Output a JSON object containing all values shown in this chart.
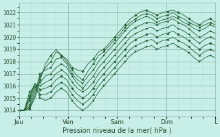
{
  "title": "",
  "xlabel": "Pression niveau de la mer( hPa )",
  "ylabel": "",
  "ylim": [
    1013.5,
    1022.8
  ],
  "yticks": [
    1014,
    1015,
    1016,
    1017,
    1018,
    1019,
    1020,
    1021,
    1022
  ],
  "background_color": "#c8eee8",
  "plot_bg_color": "#c8eee8",
  "grid_major_color": "#88bbaa",
  "grid_minor_color": "#aaddcc",
  "line_color": "#1a5e2a",
  "marker_color": "#1a5e2a",
  "day_labels": [
    "Jeu",
    "Ven",
    "Sam",
    "Dim",
    "L"
  ],
  "day_positions": [
    0,
    24,
    48,
    72,
    96
  ],
  "xlim": [
    0,
    96
  ],
  "series": [
    [
      1014.0,
      1014.0,
      1014.1,
      1015.0,
      1016.5,
      1017.8,
      1018.5,
      1019.0,
      1018.5,
      1018.2,
      1017.5,
      1017.3,
      1017.2,
      1017.8,
      1018.2,
      1018.8,
      1019.0,
      1019.5,
      1020.0,
      1020.5,
      1021.0,
      1021.5,
      1021.8,
      1022.1,
      1022.2,
      1022.0,
      1021.8,
      1022.0,
      1022.1,
      1022.2,
      1022.0,
      1021.8,
      1021.5,
      1021.2,
      1021.0,
      1021.3,
      1021.5,
      1021.2
    ],
    [
      1014.0,
      1014.0,
      1014.2,
      1015.2,
      1016.8,
      1017.5,
      1018.0,
      1018.8,
      1018.5,
      1018.0,
      1017.3,
      1016.8,
      1016.5,
      1017.2,
      1017.8,
      1018.5,
      1018.8,
      1019.3,
      1019.8,
      1020.2,
      1020.8,
      1021.2,
      1021.5,
      1021.8,
      1021.9,
      1021.8,
      1021.5,
      1021.7,
      1021.8,
      1022.0,
      1021.7,
      1021.5,
      1021.2,
      1021.0,
      1020.8,
      1021.0,
      1021.2,
      1021.0
    ],
    [
      1014.0,
      1014.0,
      1014.3,
      1015.5,
      1017.0,
      1017.3,
      1017.5,
      1018.2,
      1018.3,
      1017.8,
      1017.0,
      1016.5,
      1016.2,
      1016.8,
      1017.3,
      1018.0,
      1018.5,
      1019.0,
      1019.5,
      1020.0,
      1020.5,
      1021.0,
      1021.3,
      1021.5,
      1021.7,
      1021.5,
      1021.2,
      1021.4,
      1021.5,
      1021.7,
      1021.5,
      1021.2,
      1021.0,
      1020.7,
      1020.5,
      1020.7,
      1021.0,
      1020.8
    ],
    [
      1014.0,
      1014.0,
      1014.5,
      1015.8,
      1016.3,
      1016.8,
      1017.0,
      1017.5,
      1017.8,
      1017.5,
      1016.8,
      1016.2,
      1015.8,
      1016.3,
      1016.8,
      1017.5,
      1018.0,
      1018.5,
      1019.0,
      1019.5,
      1020.0,
      1020.5,
      1020.8,
      1021.0,
      1021.2,
      1021.2,
      1021.0,
      1021.2,
      1021.3,
      1021.5,
      1021.2,
      1021.0,
      1020.7,
      1020.3,
      1020.0,
      1020.2,
      1020.5,
      1020.3
    ],
    [
      1014.0,
      1014.0,
      1014.8,
      1016.0,
      1016.0,
      1016.3,
      1016.5,
      1017.0,
      1017.3,
      1017.0,
      1016.3,
      1015.8,
      1015.5,
      1015.8,
      1016.3,
      1017.0,
      1017.5,
      1018.0,
      1018.5,
      1019.0,
      1019.5,
      1020.0,
      1020.3,
      1020.5,
      1020.7,
      1020.8,
      1020.5,
      1020.7,
      1020.8,
      1021.0,
      1020.7,
      1020.5,
      1020.2,
      1019.8,
      1019.5,
      1019.8,
      1020.0,
      1019.8
    ],
    [
      1014.0,
      1014.0,
      1015.0,
      1016.2,
      1015.7,
      1015.8,
      1016.0,
      1016.5,
      1016.8,
      1016.5,
      1015.8,
      1015.3,
      1015.0,
      1015.3,
      1015.8,
      1016.5,
      1017.0,
      1017.5,
      1018.0,
      1018.5,
      1019.0,
      1019.5,
      1019.8,
      1020.0,
      1020.2,
      1020.3,
      1020.0,
      1020.2,
      1020.3,
      1020.5,
      1020.2,
      1020.0,
      1019.7,
      1019.3,
      1019.0,
      1019.3,
      1019.5,
      1019.3
    ],
    [
      1014.0,
      1014.0,
      1015.2,
      1016.2,
      1015.3,
      1015.3,
      1015.5,
      1016.0,
      1016.3,
      1016.0,
      1015.3,
      1014.8,
      1014.5,
      1014.8,
      1015.3,
      1016.0,
      1016.5,
      1017.0,
      1017.5,
      1018.0,
      1018.5,
      1019.0,
      1019.3,
      1019.5,
      1019.7,
      1019.8,
      1019.5,
      1019.7,
      1019.8,
      1020.0,
      1019.7,
      1019.5,
      1019.2,
      1018.8,
      1018.5,
      1018.8,
      1019.0,
      1018.8
    ],
    [
      1014.0,
      1014.0,
      1015.5,
      1016.0,
      1015.0,
      1014.8,
      1015.0,
      1015.5,
      1015.8,
      1015.5,
      1014.8,
      1014.3,
      1014.0,
      1014.3,
      1014.8,
      1015.5,
      1016.0,
      1016.5,
      1017.0,
      1017.5,
      1018.0,
      1018.5,
      1018.8,
      1019.0,
      1019.2,
      1019.3,
      1019.0,
      1019.2,
      1019.3,
      1019.5,
      1019.2,
      1019.0,
      1018.7,
      1018.3,
      1018.0,
      1018.3,
      1018.5,
      1018.3
    ]
  ]
}
